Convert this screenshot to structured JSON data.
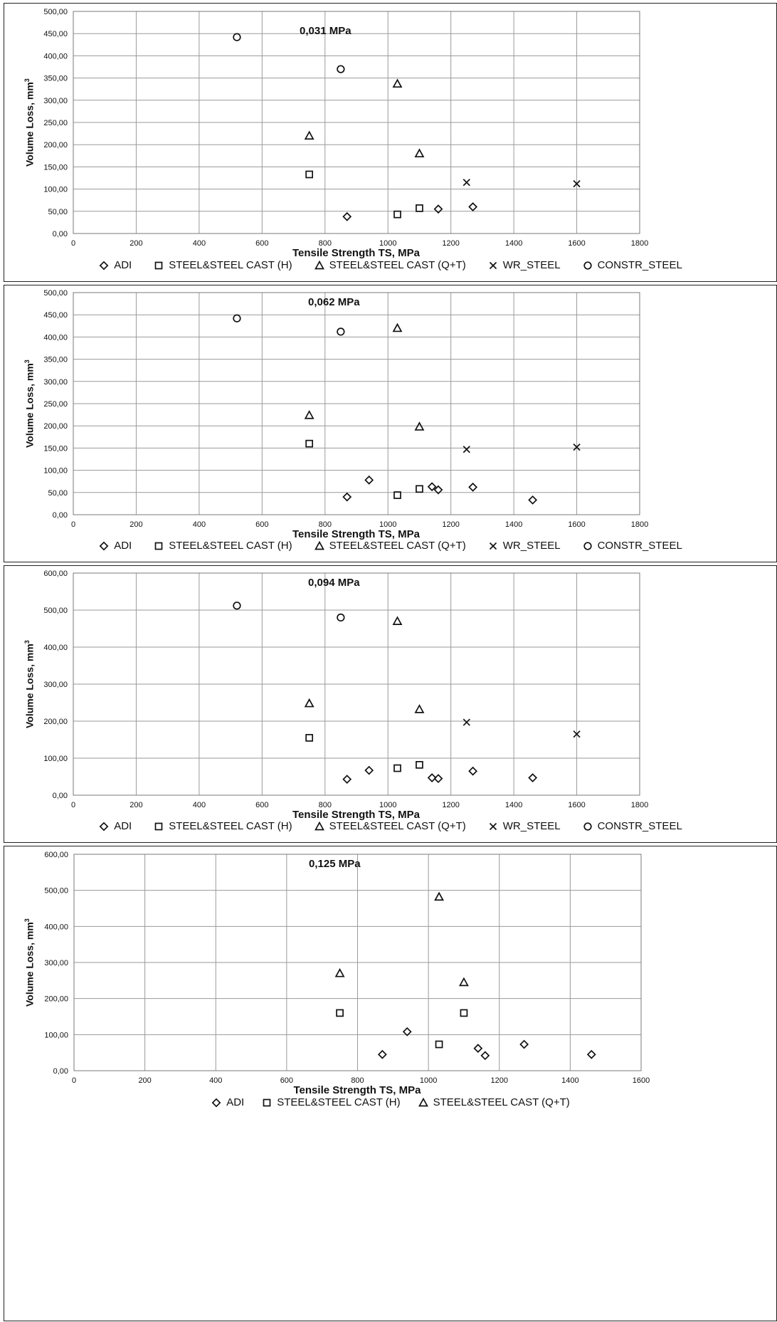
{
  "chart_data": [
    {
      "type": "scatter",
      "title": "0,031 MPa",
      "xlabel": "Tensile Strength TS, MPa",
      "ylabel": "Volume Loss, mm",
      "ylabel_sup": "3",
      "xlim": [
        0,
        1800
      ],
      "ylim": [
        0,
        500
      ],
      "xticks": [
        "0",
        "200",
        "400",
        "600",
        "800",
        "1000",
        "1200",
        "1400",
        "1600",
        "1800"
      ],
      "yticks": [
        "0,00",
        "50,00",
        "100,00",
        "150,00",
        "200,00",
        "250,00",
        "300,00",
        "350,00",
        "400,00",
        "450,00",
        "500,00"
      ],
      "grid": true,
      "legend_position": "bottom",
      "series": [
        {
          "name": "ADI",
          "marker": "diamond",
          "points": [
            [
              870,
              38
            ],
            [
              1160,
              55
            ],
            [
              1270,
              60
            ]
          ]
        },
        {
          "name": "STEEL&STEEL CAST (H)",
          "marker": "square",
          "points": [
            [
              750,
              133
            ],
            [
              1030,
              43
            ],
            [
              1100,
              57
            ]
          ]
        },
        {
          "name": "STEEL&STEEL CAST (Q+T)",
          "marker": "triangle",
          "points": [
            [
              750,
              220
            ],
            [
              1030,
              337
            ],
            [
              1100,
              180
            ]
          ]
        },
        {
          "name": "WR_STEEL",
          "marker": "cross",
          "points": [
            [
              1250,
              115
            ],
            [
              1600,
              112
            ]
          ]
        },
        {
          "name": "CONSTR_STEEL",
          "marker": "circle",
          "points": [
            [
              520,
              442
            ],
            [
              850,
              370
            ]
          ]
        }
      ]
    },
    {
      "type": "scatter",
      "title": "0,062 MPa",
      "xlabel": "Tensile Strength TS, MPa",
      "ylabel": "Volume Loss, mm",
      "ylabel_sup": "3",
      "xlim": [
        0,
        1800
      ],
      "ylim": [
        0,
        500
      ],
      "xticks": [
        "0",
        "200",
        "400",
        "600",
        "800",
        "1000",
        "1200",
        "1400",
        "1600",
        "1800"
      ],
      "yticks": [
        "0,00",
        "50,00",
        "100,00",
        "150,00",
        "200,00",
        "250,00",
        "300,00",
        "350,00",
        "400,00",
        "450,00",
        "500,00"
      ],
      "grid": true,
      "legend_position": "bottom",
      "series": [
        {
          "name": "ADI",
          "marker": "diamond",
          "points": [
            [
              870,
              40
            ],
            [
              940,
              78
            ],
            [
              1140,
              63
            ],
            [
              1160,
              56
            ],
            [
              1270,
              62
            ],
            [
              1460,
              33
            ]
          ]
        },
        {
          "name": "STEEL&STEEL CAST (H)",
          "marker": "square",
          "points": [
            [
              750,
              160
            ],
            [
              1030,
              44
            ],
            [
              1100,
              58
            ]
          ]
        },
        {
          "name": "STEEL&STEEL CAST (Q+T)",
          "marker": "triangle",
          "points": [
            [
              750,
              224
            ],
            [
              1030,
              420
            ],
            [
              1100,
              198
            ]
          ]
        },
        {
          "name": "WR_STEEL",
          "marker": "cross",
          "points": [
            [
              1250,
              147
            ],
            [
              1600,
              152
            ]
          ]
        },
        {
          "name": "CONSTR_STEEL",
          "marker": "circle",
          "points": [
            [
              520,
              442
            ],
            [
              850,
              412
            ]
          ]
        }
      ]
    },
    {
      "type": "scatter",
      "title": "0,094 MPa",
      "xlabel": "Tensile Strength TS, MPa",
      "ylabel": "Volume Loss, mm",
      "ylabel_sup": "3",
      "xlim": [
        0,
        1800
      ],
      "ylim": [
        0,
        600
      ],
      "xticks": [
        "0",
        "200",
        "400",
        "600",
        "800",
        "1000",
        "1200",
        "1400",
        "1600",
        "1800"
      ],
      "yticks": [
        "0,00",
        "100,00",
        "200,00",
        "300,00",
        "400,00",
        "500,00",
        "600,00"
      ],
      "grid": true,
      "legend_position": "bottom",
      "series": [
        {
          "name": "ADI",
          "marker": "diamond",
          "points": [
            [
              870,
              43
            ],
            [
              940,
              67
            ],
            [
              1140,
              47
            ],
            [
              1160,
              45
            ],
            [
              1270,
              65
            ],
            [
              1460,
              47
            ]
          ]
        },
        {
          "name": "STEEL&STEEL CAST (H)",
          "marker": "square",
          "points": [
            [
              750,
              155
            ],
            [
              1030,
              73
            ],
            [
              1100,
              82
            ]
          ]
        },
        {
          "name": "STEEL&STEEL CAST (Q+T)",
          "marker": "triangle",
          "points": [
            [
              750,
              248
            ],
            [
              1030,
              470
            ],
            [
              1100,
              232
            ]
          ]
        },
        {
          "name": "WR_STEEL",
          "marker": "cross",
          "points": [
            [
              1250,
              197
            ],
            [
              1600,
              165
            ]
          ]
        },
        {
          "name": "CONSTR_STEEL",
          "marker": "circle",
          "points": [
            [
              520,
              512
            ],
            [
              850,
              480
            ]
          ]
        }
      ]
    },
    {
      "type": "scatter",
      "title": "0,125 MPa",
      "xlabel": "Tensile Strength TS, MPa",
      "ylabel": "Volume Loss, mm",
      "ylabel_sup": "3",
      "xlim": [
        0,
        1600
      ],
      "ylim": [
        0,
        600
      ],
      "xticks": [
        "0",
        "200",
        "400",
        "600",
        "800",
        "1000",
        "1200",
        "1400",
        "1600"
      ],
      "yticks": [
        "0,00",
        "100,00",
        "200,00",
        "300,00",
        "400,00",
        "500,00",
        "600,00"
      ],
      "grid": true,
      "legend_position": "bottom",
      "series": [
        {
          "name": "ADI",
          "marker": "diamond",
          "points": [
            [
              870,
              45
            ],
            [
              940,
              108
            ],
            [
              1140,
              62
            ],
            [
              1160,
              42
            ],
            [
              1270,
              73
            ],
            [
              1460,
              45
            ]
          ]
        },
        {
          "name": "STEEL&STEEL CAST (H)",
          "marker": "square",
          "points": [
            [
              750,
              160
            ],
            [
              1030,
              73
            ],
            [
              1100,
              160
            ]
          ]
        },
        {
          "name": "STEEL&STEEL CAST (Q+T)",
          "marker": "triangle",
          "points": [
            [
              750,
              270
            ],
            [
              1030,
              482
            ],
            [
              1100,
              245
            ]
          ]
        }
      ]
    }
  ]
}
